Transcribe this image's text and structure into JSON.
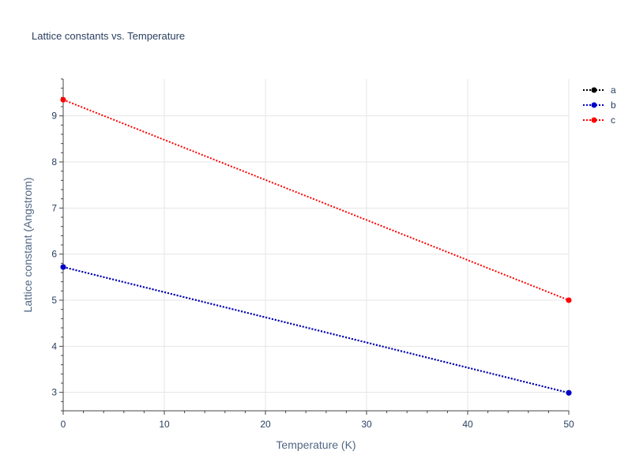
{
  "chart_data": {
    "type": "line",
    "title": "Lattice constants vs. Temperature",
    "xlabel": "Temperature (K)",
    "ylabel": "Lattice constant (Angstrom)",
    "xlim": [
      0,
      50
    ],
    "ylim": [
      2.6,
      9.8
    ],
    "x_ticks": [
      0,
      10,
      20,
      30,
      40,
      50
    ],
    "y_ticks": [
      3,
      4,
      5,
      6,
      7,
      8,
      9
    ],
    "grid": true,
    "legend_position": "top-right",
    "series": [
      {
        "name": "a",
        "color": "#000000",
        "x": [
          0,
          50
        ],
        "y": [
          5.72,
          2.99
        ]
      },
      {
        "name": "b",
        "color": "#0000cc",
        "x": [
          0,
          50
        ],
        "y": [
          5.72,
          2.99
        ]
      },
      {
        "name": "c",
        "color": "#ff0000",
        "x": [
          0,
          50
        ],
        "y": [
          9.35,
          5.0
        ]
      }
    ]
  }
}
